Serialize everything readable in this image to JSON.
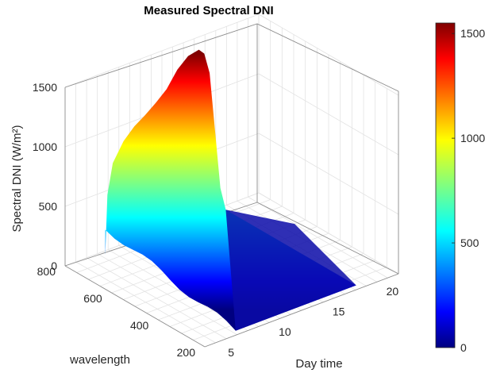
{
  "chart_data": {
    "type": "surface",
    "title": "Measured Spectral DNI",
    "xlabel": "Day time",
    "ylabel": "wavelength",
    "zlabel": "Spectral DNI (W/m²)",
    "x_ticks": [
      "5",
      "10",
      "15",
      "20"
    ],
    "y_ticks": [
      "200",
      "400",
      "600",
      "800"
    ],
    "z_ticks": [
      "0",
      "500",
      "1000",
      "1500"
    ],
    "xlim": [
      3,
      21
    ],
    "ylim": [
      200,
      800
    ],
    "zlim": [
      0,
      1500
    ],
    "colorbar": {
      "ticks": [
        "0",
        "500",
        "1000",
        "1500"
      ],
      "range": [
        0,
        1550
      ],
      "colormap": "jet"
    },
    "profile_daytime": [
      6.3,
      6.5,
      7,
      8,
      9,
      10,
      11,
      12,
      13,
      14,
      15,
      15.5,
      16,
      16.5,
      17,
      17.5
    ],
    "profile_value_at_800nm": [
      0,
      500,
      750,
      900,
      990,
      1050,
      1120,
      1200,
      1330,
      1410,
      1430,
      1380,
      1200,
      700,
      200,
      0
    ]
  },
  "colors": {
    "jet": [
      "#000080",
      "#0000ff",
      "#0080ff",
      "#00ffff",
      "#80ff80",
      "#ffff00",
      "#ff8000",
      "#ff0000",
      "#800000"
    ]
  }
}
